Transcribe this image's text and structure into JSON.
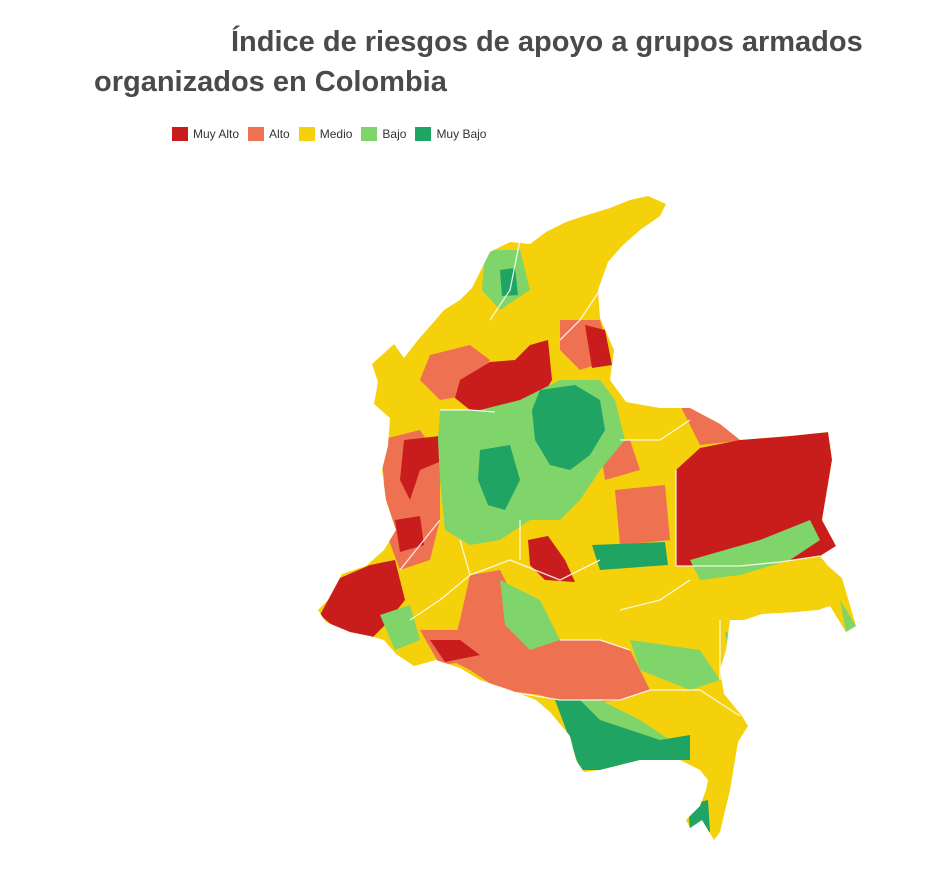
{
  "title": {
    "line1": "Índice de riesgos de apoyo a grupos armados",
    "line2": "organizados en Colombia"
  },
  "legend": [
    {
      "label": "Muy Alto",
      "color": "#c91d1d"
    },
    {
      "label": "Alto",
      "color": "#ee7152"
    },
    {
      "label": "Medio",
      "color": "#f5d10c"
    },
    {
      "label": "Bajo",
      "color": "#7fd46a"
    },
    {
      "label": "Muy Bajo",
      "color": "#1fa463"
    }
  ]
}
